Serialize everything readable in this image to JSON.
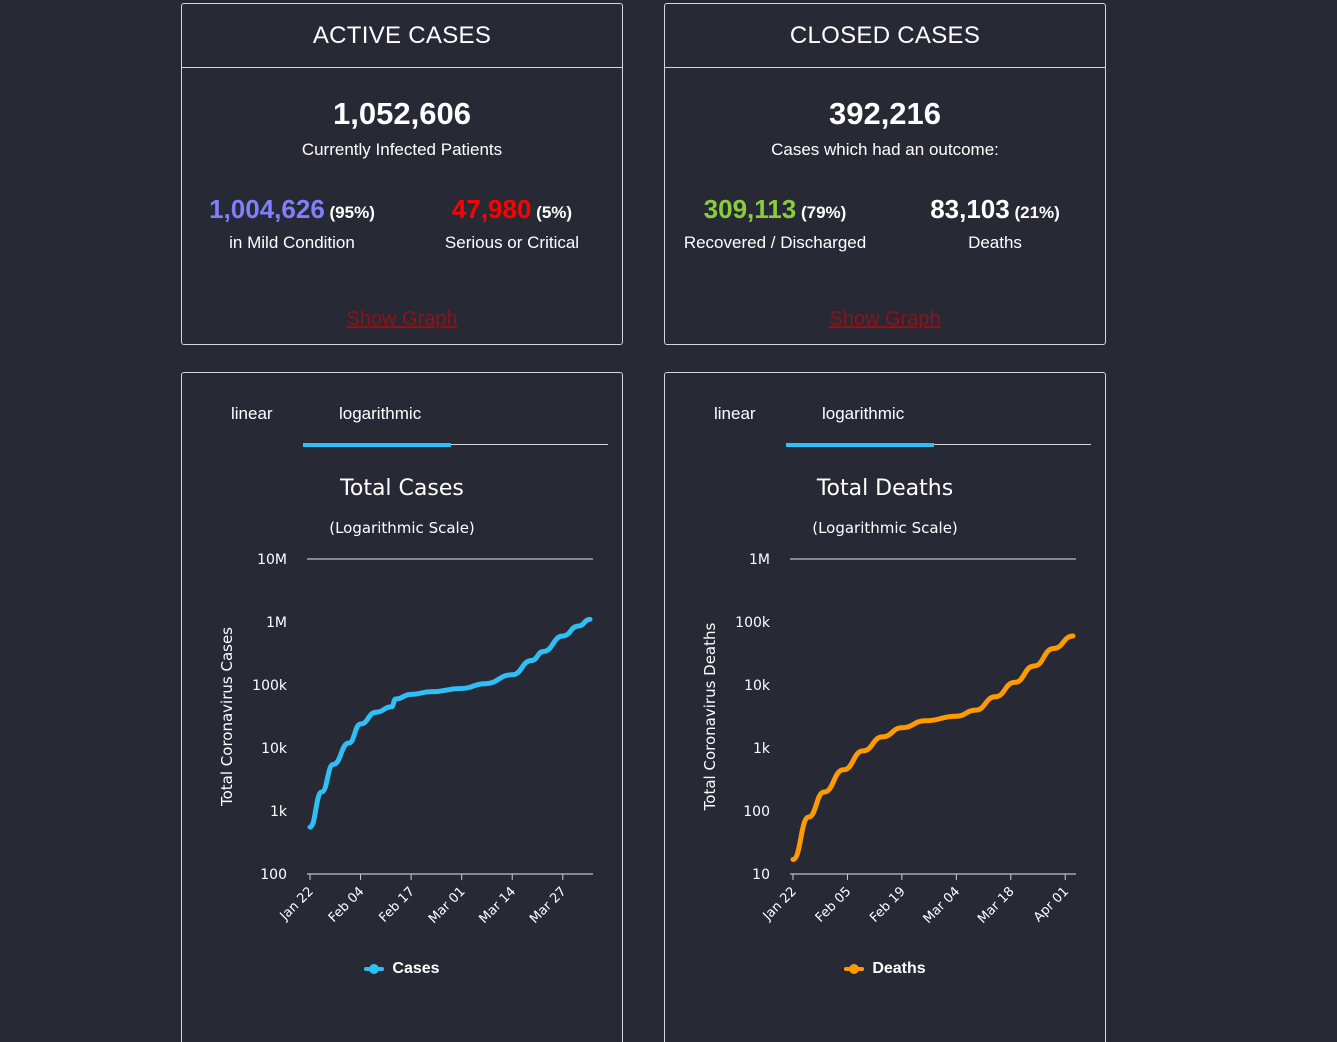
{
  "active": {
    "title": "ACTIVE CASES",
    "total": "1,052,606",
    "subtitle": "Currently Infected Patients",
    "left": {
      "value": "1,004,626",
      "pct": "(95%)",
      "label": "in Mild Condition",
      "color": "#8080ff"
    },
    "right": {
      "value": "47,980",
      "pct": "(5%)",
      "label": "Serious or Critical",
      "color": "#ff0000"
    },
    "link": "Show Graph"
  },
  "closed": {
    "title": "CLOSED CASES",
    "total": "392,216",
    "subtitle": "Cases which had an outcome:",
    "left": {
      "value": "309,113",
      "pct": "(79%)",
      "label": "Recovered / Discharged",
      "color": "#8acc3a"
    },
    "right": {
      "value": "83,103",
      "pct": "(21%)",
      "label": "Deaths",
      "color": "#ffffff"
    },
    "link": "Show Graph"
  },
  "tabs": {
    "linear": "linear",
    "log": "logarithmic",
    "selected": "logarithmic",
    "accent": "#2fbef5"
  },
  "chart_data": [
    {
      "type": "line",
      "title": "Total Cases",
      "subtitle": "(Logarithmic Scale)",
      "ylabel": "Total Coronavirus Cases",
      "yscale": "log",
      "ylim": [
        100,
        10000000
      ],
      "yticks": [
        100,
        1000,
        10000,
        100000,
        1000000,
        10000000
      ],
      "ytick_labels": [
        "100",
        "1k",
        "10k",
        "100k",
        "1M",
        "10M"
      ],
      "xticks": [
        "Jan 22",
        "Feb 04",
        "Feb 17",
        "Mar 01",
        "Mar 14",
        "Mar 27"
      ],
      "x_first": "Jan 22",
      "x_last": "Apr 03",
      "color": "#2fbef5",
      "series": [
        {
          "name": "Cases",
          "x": [
            "Jan 22",
            "Jan 25",
            "Jan 28",
            "Feb 01",
            "Feb 04",
            "Feb 08",
            "Feb 12",
            "Feb 13",
            "Feb 17",
            "Feb 22",
            "Mar 01",
            "Mar 07",
            "Mar 14",
            "Mar 19",
            "Mar 22",
            "Mar 27",
            "Mar 31",
            "Apr 03"
          ],
          "values": [
            555,
            2000,
            5500,
            12000,
            24000,
            37000,
            45000,
            60000,
            71000,
            78000,
            88000,
            105000,
            145000,
            245000,
            340000,
            600000,
            860000,
            1100000
          ]
        }
      ],
      "legend": "bottom-center"
    },
    {
      "type": "line",
      "title": "Total Deaths",
      "subtitle": "(Logarithmic Scale)",
      "ylabel": "Total Coronavirus  Deaths",
      "yscale": "log",
      "ylim": [
        10,
        1000000
      ],
      "yticks": [
        10,
        100,
        1000,
        10000,
        100000,
        1000000
      ],
      "ytick_labels": [
        "10",
        "100",
        "1k",
        "10k",
        "100k",
        "1M"
      ],
      "xticks": [
        "Jan 22",
        "Feb 05",
        "Feb 19",
        "Mar 04",
        "Mar 18",
        "Apr 01"
      ],
      "x_first": "Jan 22",
      "x_last": "Apr 03",
      "color": "#ff9a00",
      "series": [
        {
          "name": "Deaths",
          "x": [
            "Jan 22",
            "Jan 26",
            "Jan 30",
            "Feb 04",
            "Feb 09",
            "Feb 14",
            "Feb 19",
            "Feb 25",
            "Mar 04",
            "Mar 09",
            "Mar 14",
            "Mar 19",
            "Mar 24",
            "Mar 29",
            "Apr 03"
          ],
          "values": [
            17,
            80,
            200,
            450,
            900,
            1500,
            2100,
            2700,
            3200,
            4000,
            6500,
            11000,
            20000,
            38000,
            60000
          ]
        }
      ],
      "legend": "bottom-center"
    }
  ]
}
